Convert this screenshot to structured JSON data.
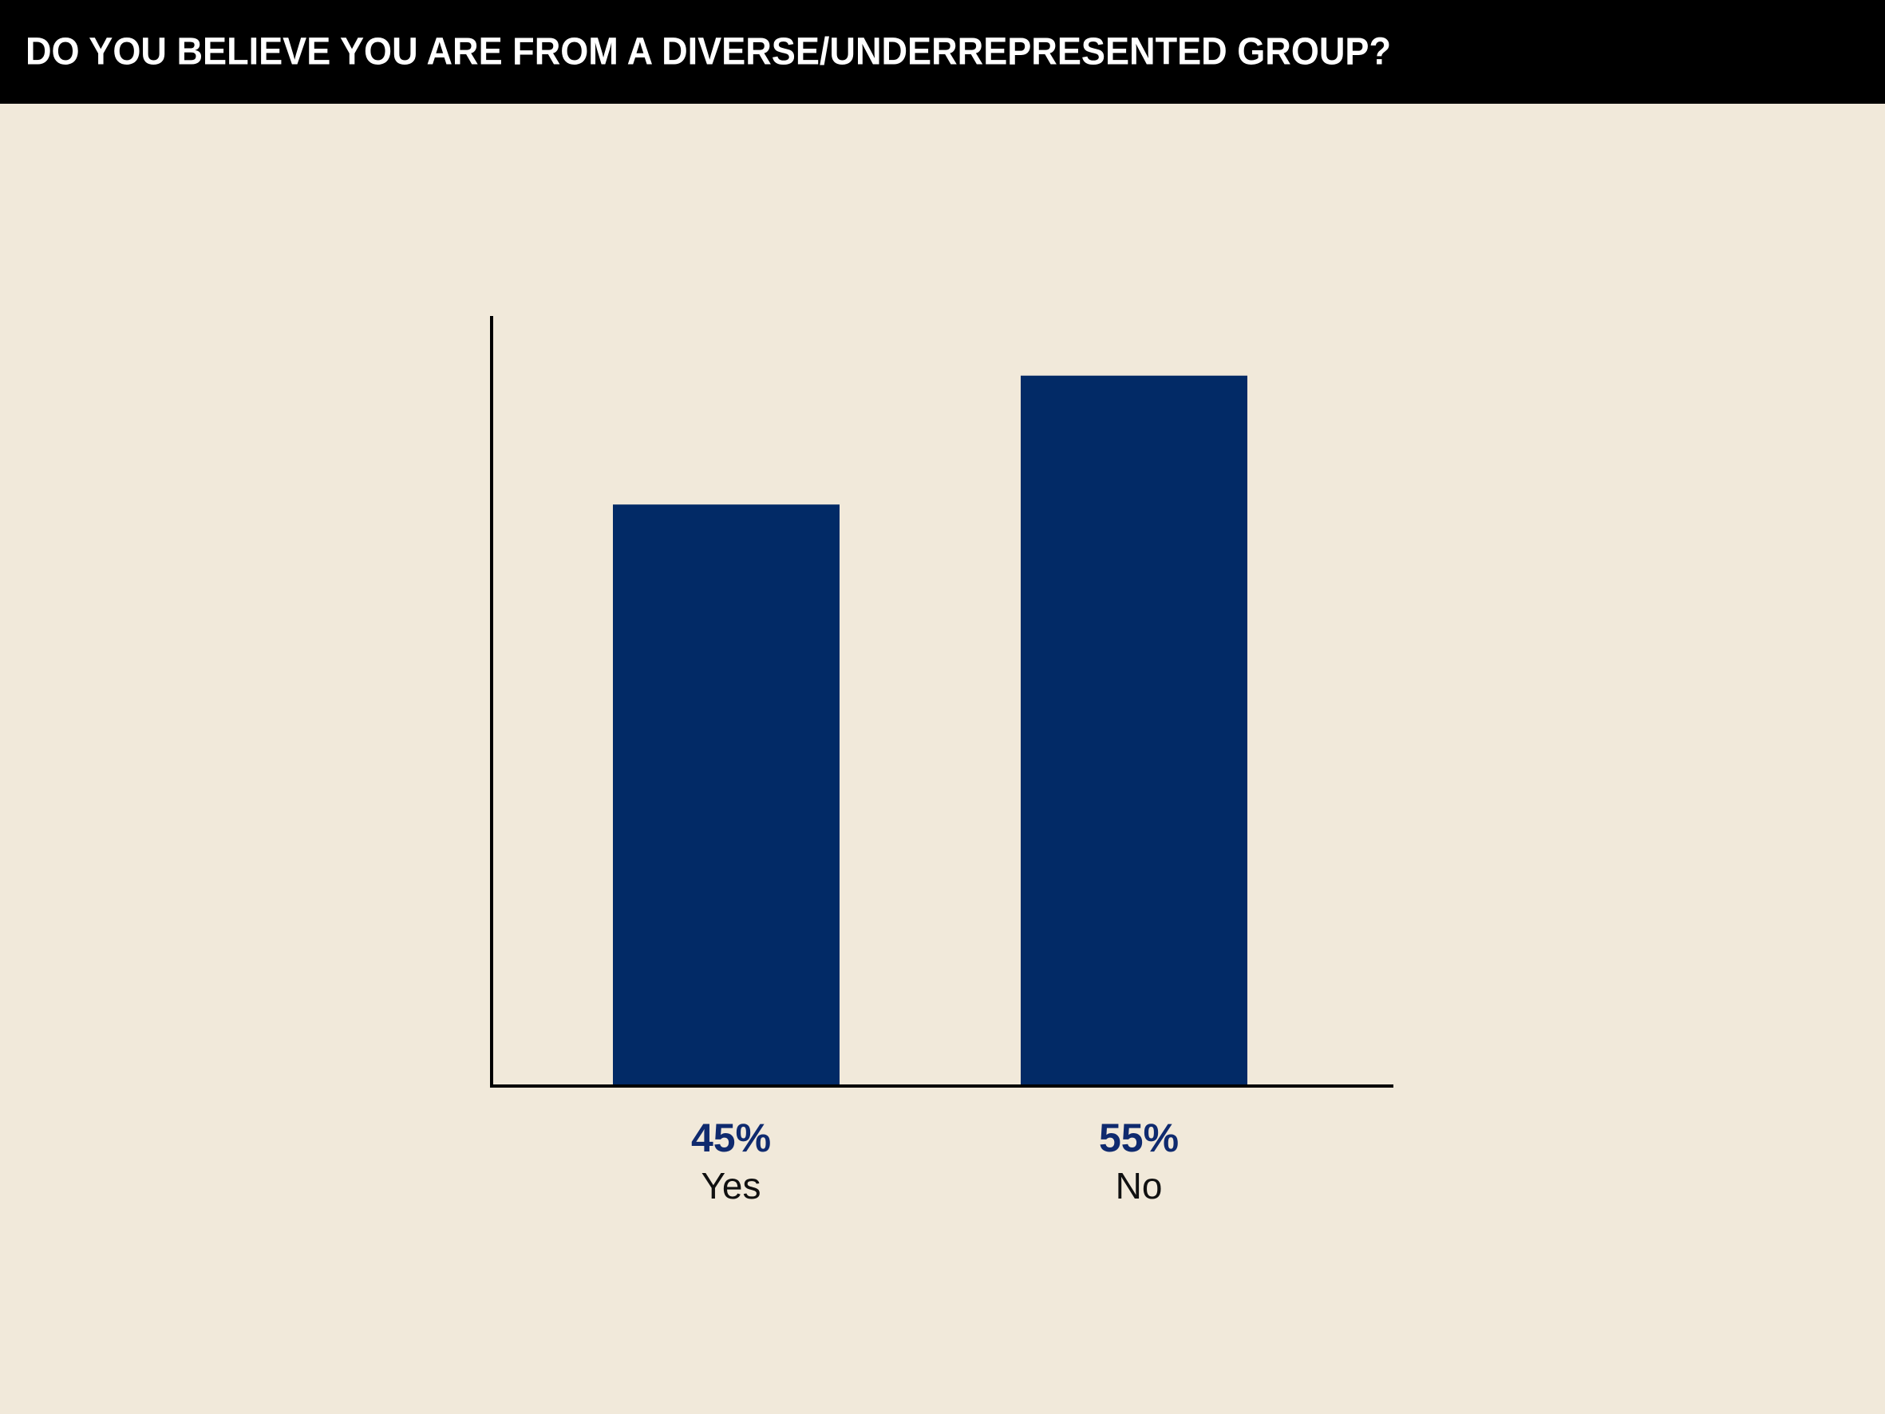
{
  "chart_data": {
    "type": "bar",
    "title": "DO YOU BELIEVE YOU ARE FROM A DIVERSE/UNDERREPRESENTED GROUP?",
    "categories": [
      "Yes",
      "No"
    ],
    "values": [
      45,
      55
    ],
    "value_labels": [
      "45%",
      "55%"
    ],
    "color": "#022a66",
    "ylim": [
      0,
      60
    ],
    "grid": false
  }
}
